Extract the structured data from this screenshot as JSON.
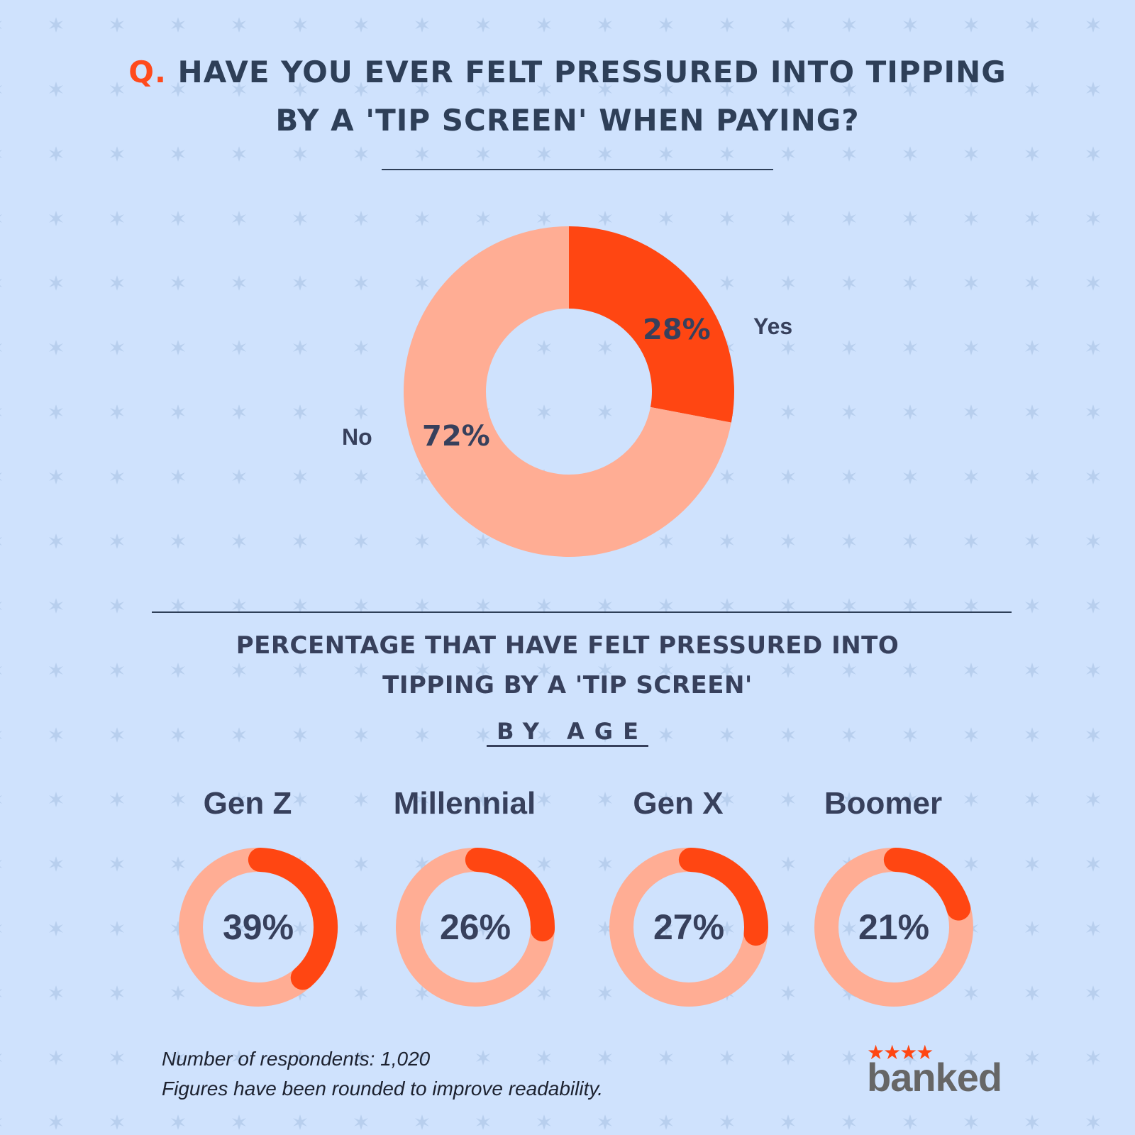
{
  "title": {
    "prefix": "Q.",
    "line1": " HAVE YOU EVER FELT PRESSURED INTO TIPPING",
    "line2": "BY A 'TIP SCREEN' WHEN PAYING?"
  },
  "colors": {
    "background": "#cfe2fd",
    "accent": "#ff4612",
    "accent_light": "#ffad94",
    "text": "#37405c"
  },
  "chart_data": [
    {
      "type": "pie",
      "style": "donut",
      "title": "Q. HAVE YOU EVER FELT PRESSURED INTO TIPPING BY A 'TIP SCREEN' WHEN PAYING?",
      "categories": [
        "Yes",
        "No"
      ],
      "values": [
        28,
        72
      ],
      "labels": [
        "28%",
        "72%"
      ],
      "colors": [
        "#ff4612",
        "#ffad94"
      ]
    },
    {
      "type": "pie",
      "style": "gauge-rings",
      "title": "PERCENTAGE THAT HAVE FELT PRESSURED INTO TIPPING BY A 'TIP SCREEN'",
      "subtitle": "BY AGE",
      "categories": [
        "Gen Z",
        "Millennial",
        "Gen X",
        "Boomer"
      ],
      "values": [
        39,
        26,
        27,
        21
      ],
      "labels": [
        "39%",
        "26%",
        "27%",
        "21%"
      ]
    }
  ],
  "footer": {
    "respondents": "Number of respondents: 1,020",
    "note": "Figures have been rounded to improve readability."
  },
  "logo": {
    "stars": "★★★★",
    "name": "banked"
  }
}
